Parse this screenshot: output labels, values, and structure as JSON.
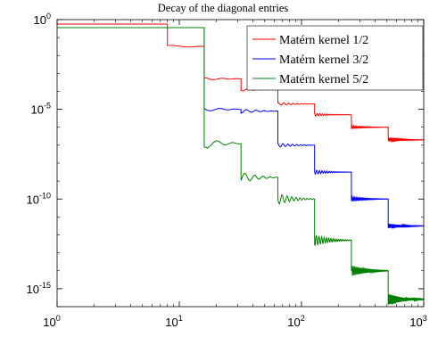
{
  "chart_data": {
    "type": "line",
    "title": "Decay of the diagonal entries",
    "xscale": "log",
    "yscale": "log",
    "xlim": [
      1,
      1000
    ],
    "ylim": [
      1e-16,
      1
    ],
    "xticks": [
      {
        "base": "10",
        "exp": "0"
      },
      {
        "base": "10",
        "exp": "1"
      },
      {
        "base": "10",
        "exp": "2"
      },
      {
        "base": "10",
        "exp": "3"
      }
    ],
    "yticks": [
      {
        "base": "10",
        "exp": "0"
      },
      {
        "base": "10",
        "exp": "-5"
      },
      {
        "base": "10",
        "exp": "-10"
      },
      {
        "base": "10",
        "exp": "-15"
      }
    ],
    "legend_position": "top-right",
    "grid": false,
    "series": [
      {
        "name": "Matérn kernel 1/2",
        "color": "#ff0000",
        "steps": [
          [
            1,
            8,
            -0.25
          ],
          [
            8,
            16,
            -1.5
          ],
          [
            16,
            32,
            -3.3
          ],
          [
            32,
            64,
            -3.9
          ],
          [
            64,
            128,
            -4.7
          ],
          [
            128,
            256,
            -5.3
          ],
          [
            256,
            512,
            -6.0
          ],
          [
            512,
            1000,
            -6.7
          ]
        ],
        "ripple": 0.08
      },
      {
        "name": "Matérn kernel 3/2",
        "color": "#0000ff",
        "steps": [
          [
            1,
            16,
            -0.45
          ],
          [
            16,
            32,
            -5.0
          ],
          [
            32,
            64,
            -5.1
          ],
          [
            64,
            128,
            -7.0
          ],
          [
            128,
            256,
            -8.5
          ],
          [
            256,
            512,
            -10.0
          ],
          [
            512,
            1000,
            -11.5
          ]
        ],
        "ripple": 0.12
      },
      {
        "name": "Matérn kernel 5/2",
        "color": "#008000",
        "steps": [
          [
            1,
            16,
            -0.45
          ],
          [
            16,
            32,
            -6.9
          ],
          [
            32,
            64,
            -8.8
          ],
          [
            64,
            128,
            -10.0
          ],
          [
            128,
            256,
            -12.3
          ],
          [
            256,
            512,
            -14.0
          ],
          [
            512,
            1000,
            -15.6
          ]
        ],
        "ripple": 0.3
      }
    ]
  }
}
